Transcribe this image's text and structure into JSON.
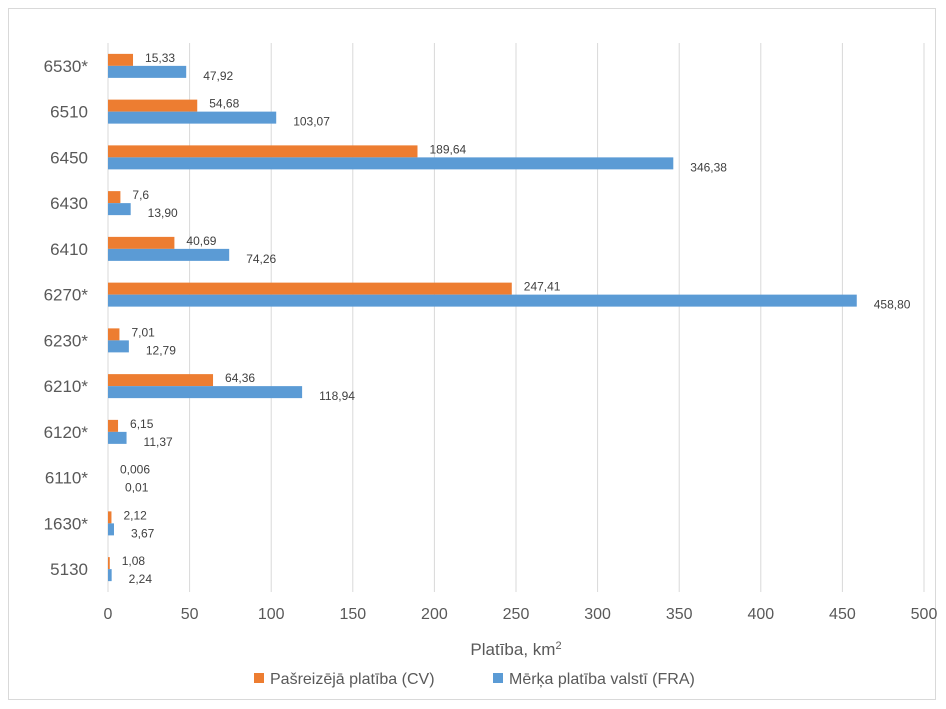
{
  "chart_data": {
    "type": "bar",
    "orientation": "horizontal",
    "categories": [
      "6530*",
      "6510",
      "6450",
      "6430",
      "6410",
      "6270*",
      "6230*",
      "6210*",
      "6120*",
      "6110*",
      "1630*",
      "5130"
    ],
    "series": [
      {
        "name": "Pašreizējā platība (CV)",
        "color": "#ED7D31",
        "values": [
          15.33,
          54.68,
          189.64,
          7.6,
          40.69,
          247.41,
          7.01,
          64.36,
          6.15,
          0.006,
          2.12,
          1.08
        ],
        "labels": [
          "15,33",
          "54,68",
          "189,64",
          "7,6",
          "40,69",
          "247,41",
          "7,01",
          "64,36",
          "6,15",
          "0,006",
          "2,12",
          "1,08"
        ]
      },
      {
        "name": "Mērķa platība valstī (FRA)",
        "color": "#5B9BD5",
        "values": [
          47.92,
          103.07,
          346.38,
          13.9,
          74.26,
          458.8,
          12.79,
          118.94,
          11.37,
          0.01,
          3.67,
          2.24
        ],
        "labels": [
          "47,92",
          "103,07",
          "346,38",
          "13,90",
          "74,26",
          "458,80",
          "12,79",
          "118,94",
          "11,37",
          "0,01",
          "3,67",
          "2,24"
        ]
      }
    ],
    "xlim": [
      0,
      500
    ],
    "xticks": [
      0,
      50,
      100,
      150,
      200,
      250,
      300,
      350,
      400,
      450,
      500
    ],
    "xlabel": "Platība, km",
    "xlabel_superscript": "2",
    "grid": "vertical",
    "legend_position": "bottom"
  }
}
